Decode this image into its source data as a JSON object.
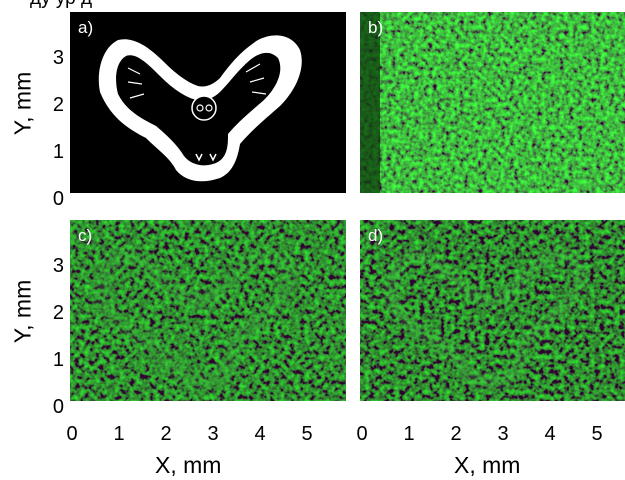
{
  "cutoff_text": "ду  ур                д",
  "panels": [
    {
      "id": "a",
      "label": "a)",
      "kind": "mask"
    },
    {
      "id": "b",
      "label": "b)",
      "kind": "speckle"
    },
    {
      "id": "c",
      "label": "c)",
      "kind": "reconstruction"
    },
    {
      "id": "d",
      "label": "d)",
      "kind": "reconstruction"
    }
  ],
  "axes": {
    "y_label": "Y, mm",
    "x_label": "X, mm",
    "y_ticks": [
      "0",
      "1",
      "2",
      "3"
    ],
    "x_ticks": [
      "0",
      "1",
      "2",
      "3",
      "4",
      "5"
    ],
    "x_range_mm": [
      0,
      5.8
    ],
    "y_range_mm": [
      0,
      3.8
    ]
  },
  "colors": {
    "mask_background": "#000000",
    "mask_foreground": "#ffffff",
    "speckle_dark": "#061806",
    "speckle_mid": "#1f6b1f",
    "speckle_bright": "#49c649"
  }
}
